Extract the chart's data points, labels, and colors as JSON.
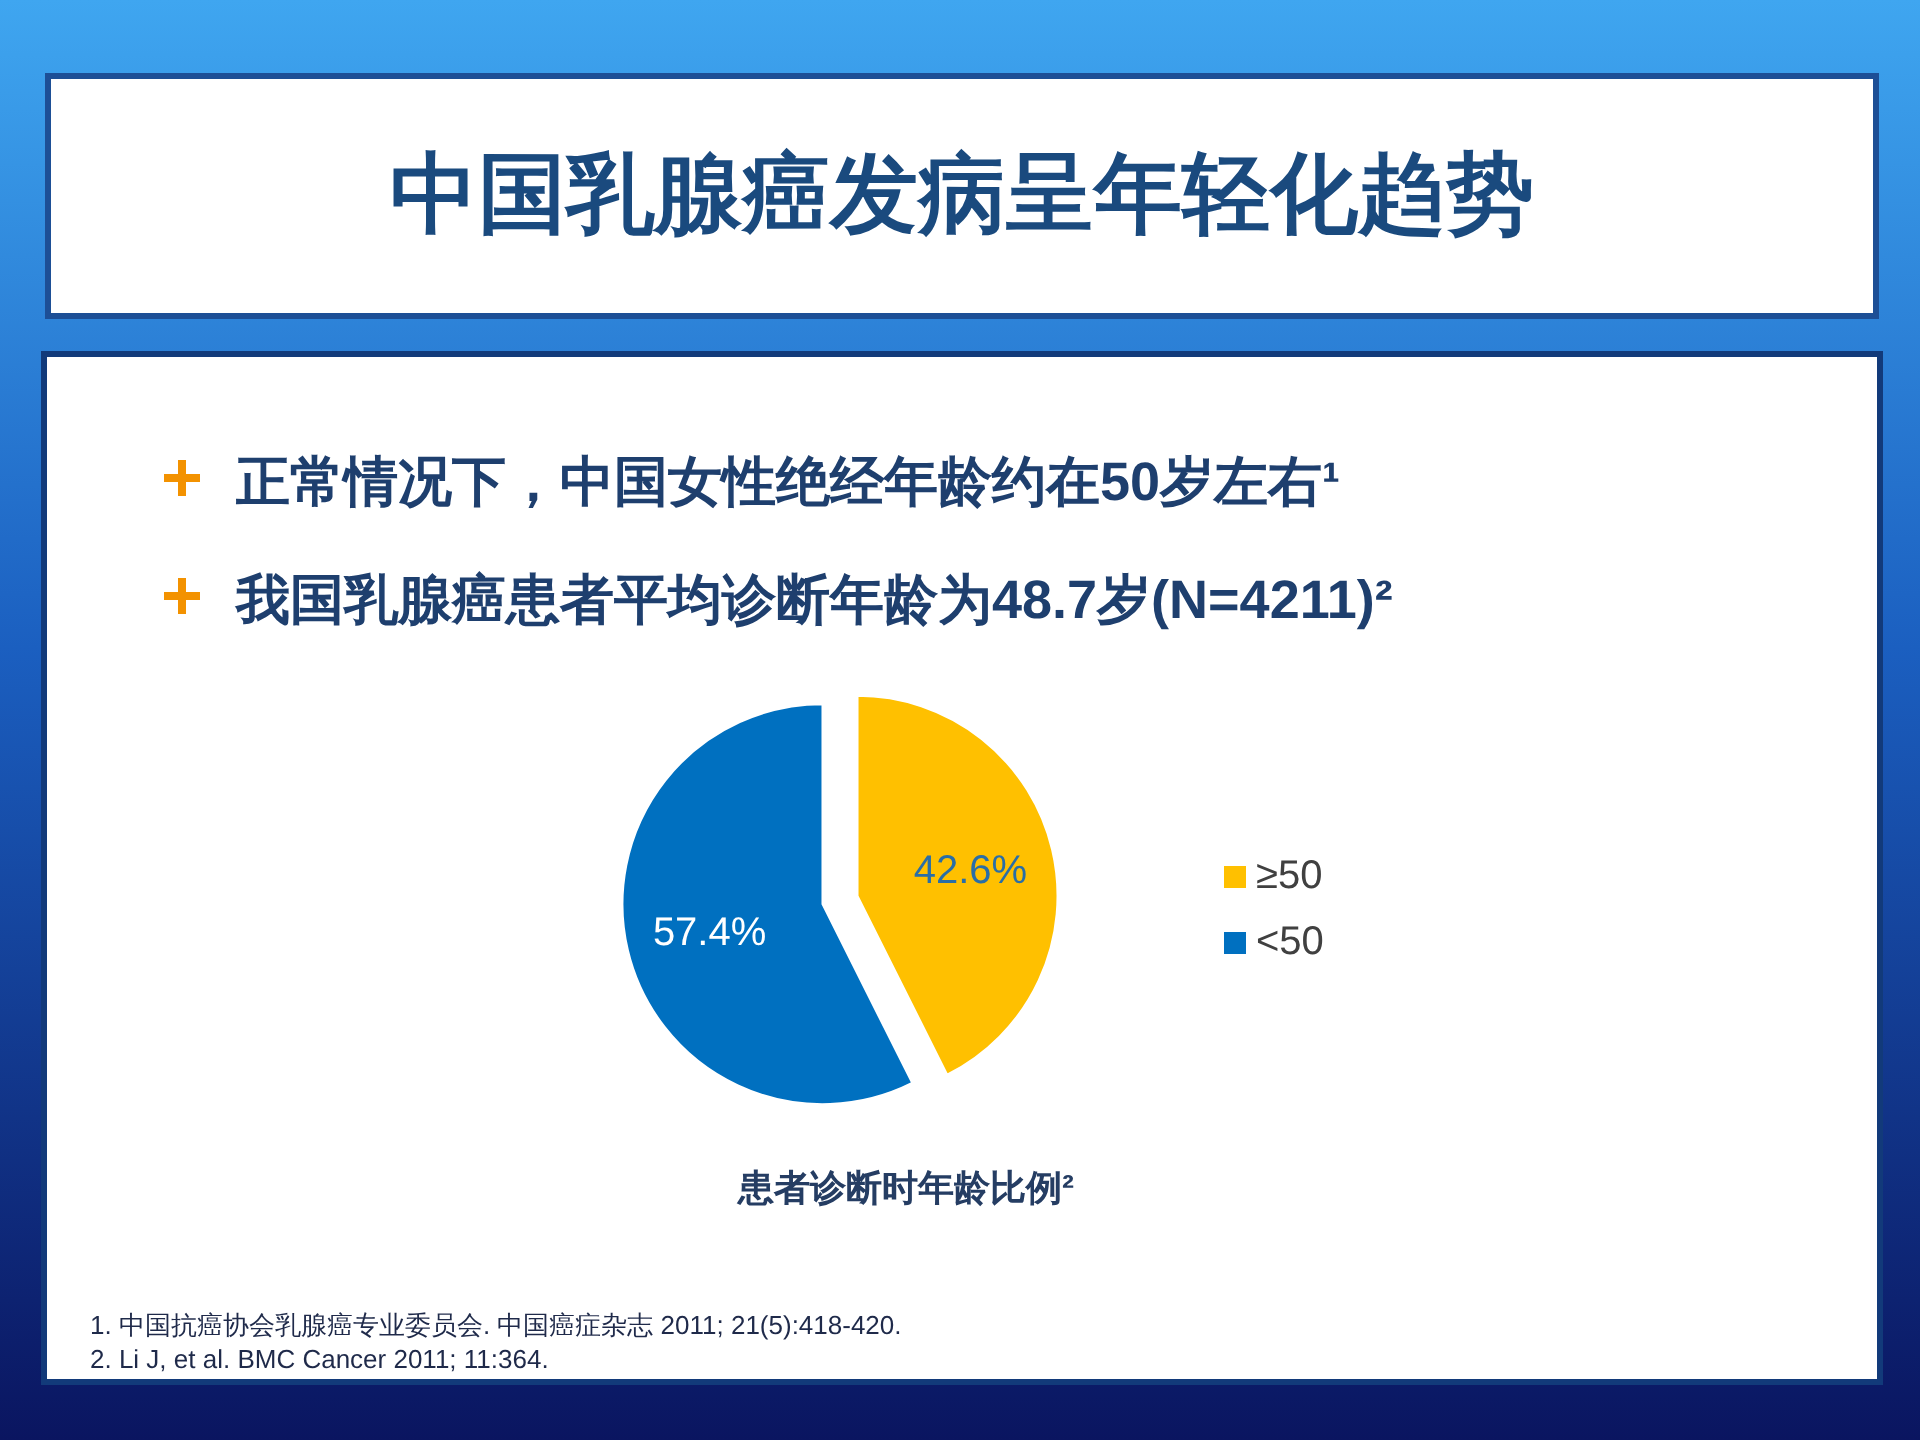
{
  "chart_data": {
    "type": "pie",
    "title": "中国乳腺癌发病呈年轻化趋势",
    "subtitle": "患者诊断时年龄比例²",
    "annotations": [
      "正常情况下，中国女性绝经年龄约在50岁左右¹",
      "我国乳腺癌患者平均诊断年龄为48.7岁(N=4211)²",
      "1. 中国抗癌协会乳腺癌专业委员会. 中国癌症杂志 2011; 21(5):418-420.",
      "2. Li J, et al. BMC Cancer 2011; 11:364."
    ],
    "categories": [
      "≥50",
      "<50"
    ],
    "values": [
      42.6,
      57.4
    ],
    "colors": [
      "#ffc000",
      "#0070c0"
    ],
    "value_labels": [
      "42.6%",
      "57.4%"
    ],
    "legend": "right"
  }
}
